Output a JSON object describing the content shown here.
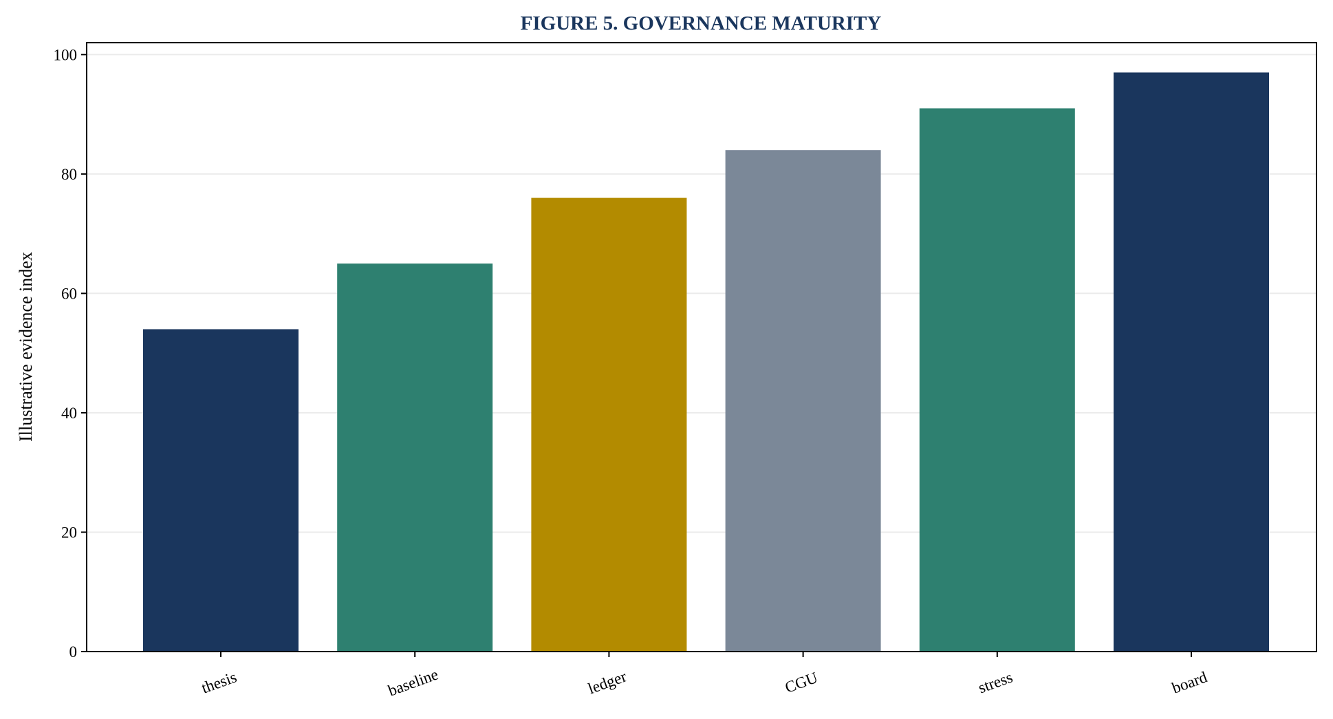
{
  "chart_data": {
    "type": "bar",
    "title": "FIGURE 5. GOVERNANCE MATURITY",
    "xlabel": "",
    "ylabel": "Illustrative evidence index",
    "categories": [
      "thesis",
      "baseline",
      "ledger",
      "CGU",
      "stress",
      "board"
    ],
    "values": [
      54,
      65,
      76,
      84,
      91,
      97
    ],
    "colors": [
      "#1a365d",
      "#2e8070",
      "#b38b00",
      "#7b8898",
      "#2e8070",
      "#1a365d"
    ],
    "ylim": [
      0,
      102
    ],
    "yticks": [
      0,
      20,
      40,
      60,
      80,
      100
    ],
    "grid": "y-major",
    "legend": "none"
  },
  "style": {
    "title_color": "#1a365d",
    "grid_color": "#ebebeb",
    "axis_color": "#000000"
  }
}
